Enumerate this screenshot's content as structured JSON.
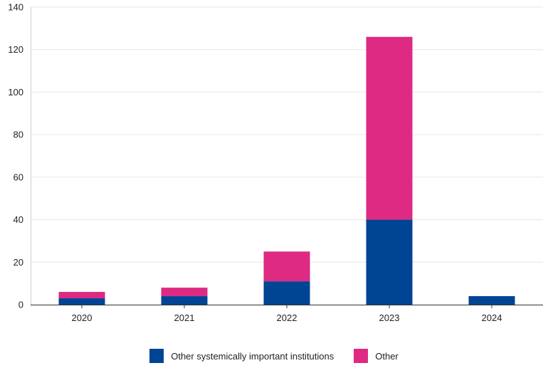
{
  "chart_data": {
    "type": "bar",
    "stacked": true,
    "categories": [
      "2020",
      "2021",
      "2022",
      "2023",
      "2024"
    ],
    "series": [
      {
        "name": "Other systemically important institutions",
        "values": [
          3,
          4,
          11,
          40,
          4
        ],
        "color": "#004494"
      },
      {
        "name": "Other",
        "values": [
          3,
          4,
          14,
          86,
          0
        ],
        "color": "#de2a82"
      }
    ],
    "ylim": [
      0,
      140
    ],
    "yticks": [
      "0",
      "20",
      "40",
      "60",
      "80",
      "100",
      "120",
      "140"
    ],
    "grid": true,
    "legend_position": "bottom-center"
  }
}
